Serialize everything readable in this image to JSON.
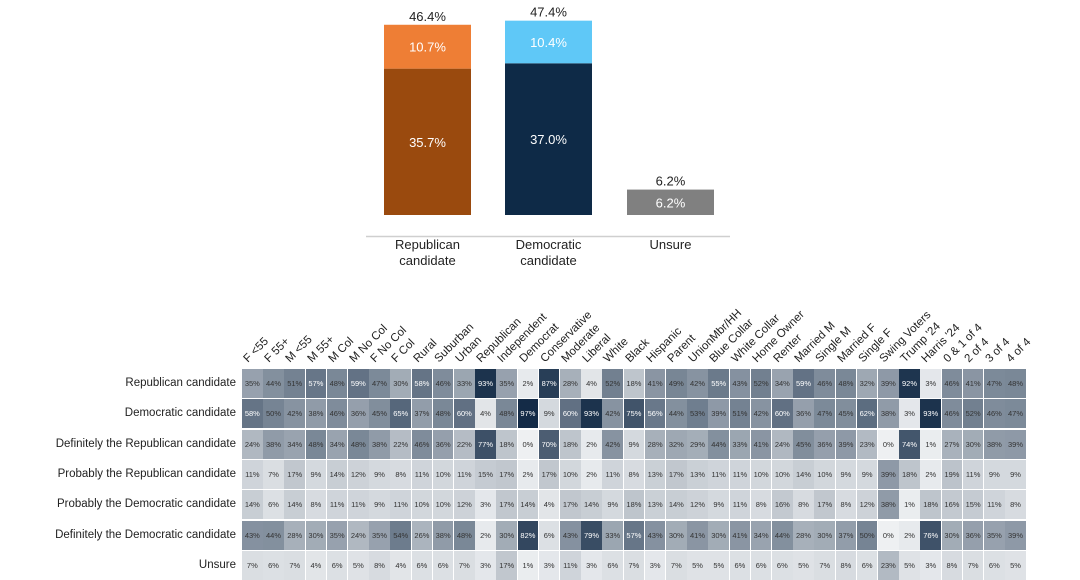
{
  "chart_data": [
    {
      "type": "bar",
      "stacked": true,
      "categories": [
        "Republican\ncandidate",
        "Democratic\ncandidate",
        "Unsure"
      ],
      "totals": [
        "46.4%",
        "47.4%",
        "6.2%"
      ],
      "series": [
        {
          "values": [
            35.7,
            37.0,
            6.2
          ],
          "labels": [
            "35.7%",
            "37.0%",
            "6.2%"
          ],
          "colors": [
            "#9a4a0e",
            "#0e2a47",
            "#808080"
          ]
        },
        {
          "values": [
            10.7,
            10.4,
            0
          ],
          "labels": [
            "10.7%",
            "10.4%",
            ""
          ],
          "colors": [
            "#ee7e35",
            "#5fc8f7",
            "#808080"
          ]
        }
      ],
      "colors": {
        "rep_definite": "#9a4a0e",
        "rep_probable": "#ee7e35",
        "dem_definite": "#0e2a47",
        "dem_probable": "#5fc8f7",
        "unsure": "#808080"
      }
    },
    {
      "type": "heatmap",
      "columns": [
        "F <55",
        "F 55+",
        "M <55",
        "M 55+",
        "M Col",
        "M No Col",
        "F No Col",
        "F Col",
        "Rural",
        "Suburban",
        "Urban",
        "Republican",
        "Independent",
        "Democrat",
        "Conservative",
        "Moderate",
        "Liberal",
        "White",
        "Black",
        "Hispanic",
        "Parent",
        "UnionMbr/HH",
        "Blue Collar",
        "White Collar",
        "Home Owner",
        "Renter",
        "Married M",
        "Single M",
        "Married F",
        "Single F",
        "Swing Voters",
        "Trump '24",
        "Harris '24",
        "0 & 1 of 4",
        "2 of 4",
        "3 of 4",
        "4 of 4"
      ],
      "rows": [
        {
          "label": "Republican candidate",
          "values": [
            35,
            44,
            51,
            57,
            48,
            59,
            47,
            30,
            58,
            46,
            33,
            93,
            35,
            2,
            87,
            28,
            4,
            52,
            18,
            41,
            49,
            42,
            55,
            43,
            52,
            34,
            59,
            46,
            48,
            32,
            39,
            92,
            3,
            46,
            41,
            47,
            48
          ]
        },
        {
          "label": "Democratic candidate",
          "values": [
            58,
            50,
            42,
            38,
            46,
            36,
            45,
            65,
            37,
            48,
            60,
            4,
            48,
            97,
            9,
            60,
            93,
            42,
            75,
            56,
            44,
            53,
            39,
            51,
            42,
            60,
            36,
            47,
            45,
            62,
            38,
            3,
            93,
            46,
            52,
            46,
            47
          ]
        },
        {
          "label": "Definitely the Republican candidate",
          "values": [
            24,
            38,
            34,
            48,
            34,
            48,
            38,
            22,
            46,
            36,
            22,
            77,
            18,
            0,
            70,
            18,
            2,
            42,
            9,
            28,
            32,
            29,
            44,
            33,
            41,
            24,
            45,
            36,
            39,
            23,
            0,
            74,
            1,
            27,
            30,
            38,
            39
          ]
        },
        {
          "label": "Probably the Republican candidate",
          "values": [
            11,
            7,
            17,
            9,
            14,
            12,
            9,
            8,
            11,
            10,
            11,
            15,
            17,
            2,
            17,
            10,
            2,
            11,
            8,
            13,
            17,
            13,
            11,
            11,
            10,
            10,
            14,
            10,
            9,
            9,
            39,
            18,
            2,
            19,
            11,
            9,
            9
          ]
        },
        {
          "label": "Probably the Democratic candidate",
          "values": [
            14,
            6,
            14,
            8,
            11,
            11,
            9,
            11,
            10,
            10,
            12,
            3,
            17,
            14,
            4,
            17,
            14,
            9,
            18,
            13,
            14,
            12,
            9,
            11,
            8,
            16,
            8,
            17,
            8,
            12,
            38,
            1,
            18,
            16,
            15,
            11,
            8
          ]
        },
        {
          "label": "Definitely the Democratic candidate",
          "values": [
            43,
            44,
            28,
            30,
            35,
            24,
            35,
            54,
            26,
            38,
            48,
            2,
            30,
            82,
            6,
            43,
            79,
            33,
            57,
            43,
            30,
            41,
            30,
            41,
            34,
            44,
            28,
            30,
            37,
            50,
            0,
            2,
            76,
            30,
            36,
            35,
            39
          ]
        },
        {
          "label": "Unsure",
          "values": [
            7,
            6,
            7,
            4,
            6,
            5,
            8,
            4,
            6,
            6,
            7,
            3,
            17,
            1,
            3,
            11,
            3,
            6,
            7,
            3,
            7,
            5,
            5,
            6,
            6,
            6,
            5,
            7,
            8,
            6,
            23,
            5,
            3,
            8,
            7,
            6,
            5
          ]
        }
      ]
    }
  ]
}
